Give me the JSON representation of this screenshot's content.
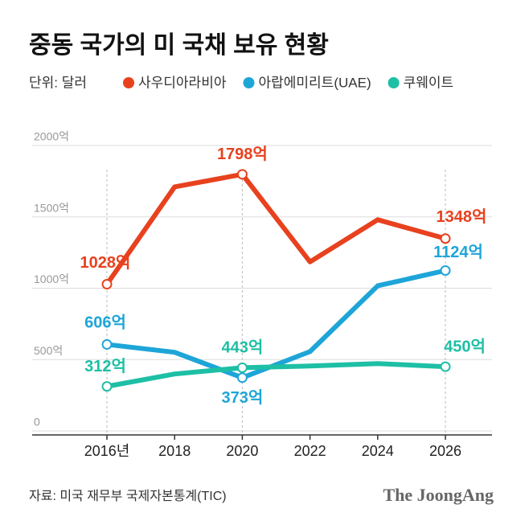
{
  "chart_data": {
    "type": "line",
    "title": "중동 국가의 미 국채 보유 현황",
    "unit": "단위: 달러",
    "categories": [
      "2016년",
      "2018",
      "2020",
      "2022",
      "2024",
      "2026"
    ],
    "series": [
      {
        "name": "사우디아라비아",
        "color": "#e8411e",
        "values": [
          1028,
          1710,
          1798,
          1185,
          1480,
          1348
        ],
        "value_labels": [
          "1028억",
          null,
          "1798억",
          null,
          null,
          "1348억"
        ]
      },
      {
        "name": "아랍에미리트(UAE)",
        "color": "#1ea5d8",
        "values": [
          606,
          551,
          373,
          556,
          1017,
          1124
        ],
        "value_labels": [
          "606억",
          null,
          "373억",
          null,
          null,
          "1124억"
        ]
      },
      {
        "name": "쿠웨이트",
        "color": "#1dbfa5",
        "values": [
          312,
          399,
          443,
          455,
          472,
          450
        ],
        "value_labels": [
          "312억",
          null,
          "443억",
          null,
          null,
          "450억"
        ]
      }
    ],
    "ylim": [
      0,
      2000
    ],
    "yticks": [
      0,
      {
        "value": 500,
        "label": "500억"
      },
      {
        "value": 1000,
        "label": "1000억"
      },
      {
        "value": 1500,
        "label": "1500억"
      },
      {
        "value": 2000,
        "label": "2000억"
      }
    ],
    "grid": true,
    "source": "자료: 미국 재무부 국제자본통계(TIC)",
    "brand": "The JoongAng"
  }
}
